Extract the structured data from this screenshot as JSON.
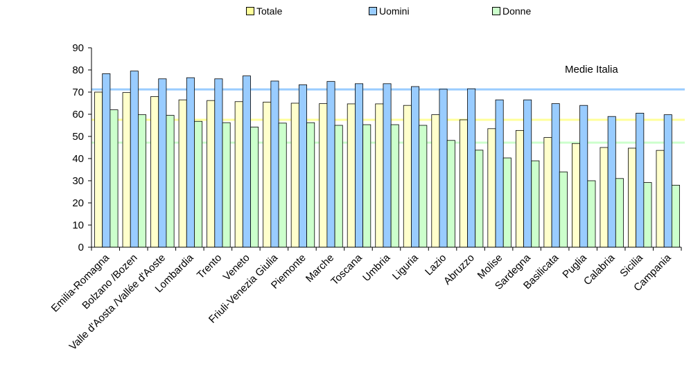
{
  "chart_data": {
    "type": "bar",
    "categories": [
      "Emilia-Romagna",
      "Bolzano /Bozen",
      "Valle d'Aosta /Vallée d'Aoste",
      "Lombardia",
      "Trento",
      "Veneto",
      "Friuli-Venezia Giulia",
      "Piemonte",
      "Marche",
      "Toscana",
      "Umbria",
      "Liguria",
      "Lazio",
      "Abruzzo",
      "Molise",
      "Sardegna",
      "Basilicata",
      "Puglia",
      "Calabria",
      "Sicilia",
      "Campania"
    ],
    "series": [
      {
        "name": "Totale",
        "color": "#ffffcc",
        "values": [
          70.0,
          69.8,
          68.0,
          66.5,
          66.2,
          65.7,
          65.5,
          65.0,
          64.8,
          64.7,
          64.7,
          64.0,
          59.8,
          57.5,
          53.5,
          52.7,
          49.5,
          46.8,
          45.0,
          44.7,
          43.7
        ]
      },
      {
        "name": "Uomini",
        "color": "#99ccff",
        "values": [
          78.3,
          79.5,
          76.0,
          76.5,
          76.0,
          77.3,
          75.0,
          73.3,
          74.8,
          73.8,
          73.8,
          72.5,
          71.3,
          71.5,
          66.5,
          66.5,
          64.8,
          64.0,
          59.0,
          60.5,
          59.8
        ]
      },
      {
        "name": "Donne",
        "color": "#ccffcc",
        "values": [
          62.0,
          59.8,
          59.5,
          56.8,
          56.2,
          54.2,
          56.0,
          56.2,
          55.0,
          55.3,
          55.3,
          55.0,
          48.2,
          43.8,
          40.3,
          39.0,
          34.0,
          30.0,
          31.0,
          29.2,
          28.0
        ]
      }
    ],
    "ylim": [
      0,
      90
    ],
    "yticks": [
      "0",
      "10",
      "20",
      "30",
      "40",
      "50",
      "60",
      "70",
      "80",
      "90"
    ],
    "grid": false,
    "legend_placement": "top",
    "reference_lines": [
      {
        "series": "Uomini",
        "value": 71.2,
        "color": "#99ccff"
      },
      {
        "series": "Totale",
        "value": 57.5,
        "color": "#ffff99"
      },
      {
        "series": "Donne",
        "value": 47.2,
        "color": "#ccffcc"
      }
    ],
    "annotation": "Medie Italia"
  }
}
